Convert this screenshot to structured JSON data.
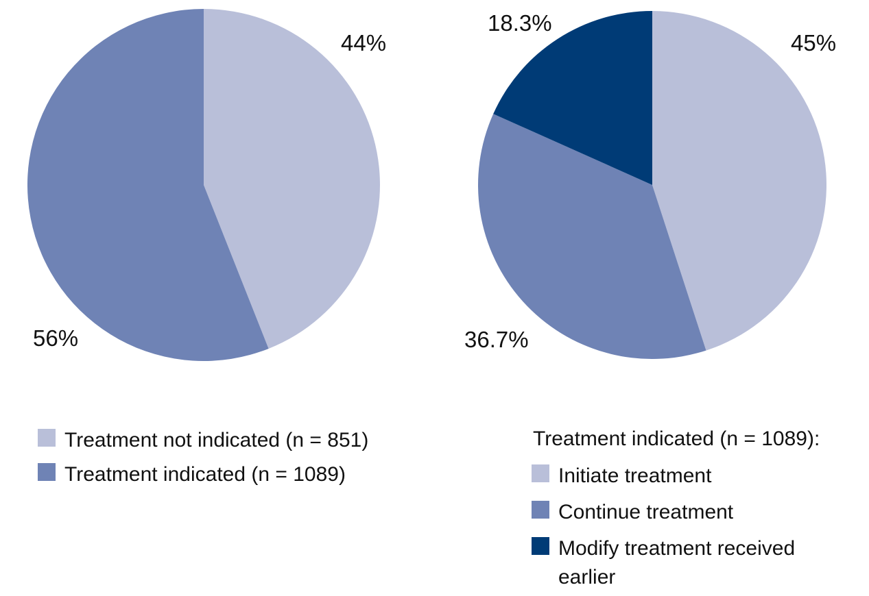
{
  "page": {
    "background": "#ffffff"
  },
  "chart_data": [
    {
      "type": "pie",
      "start_angle_deg": 0,
      "direction": "clockwise",
      "legend_position": "below-left",
      "slices": [
        {
          "label": "Treatment not indicated (n = 851)",
          "value": 44,
          "display": "44%",
          "color": "#b9bfd9"
        },
        {
          "label": "Treatment indicated (n = 1089)",
          "value": 56,
          "display": "56%",
          "color": "#6f83b5"
        }
      ]
    },
    {
      "type": "pie",
      "start_angle_deg": 0,
      "direction": "clockwise",
      "legend_position": "below-right",
      "legend_header": "Treatment indicated (n = 1089):",
      "slices": [
        {
          "label": "Initiate treatment",
          "value": 45,
          "display": "45%",
          "color": "#b9bfd9"
        },
        {
          "label": "Continue treatment",
          "value": 36.7,
          "display": "36.7%",
          "color": "#6f83b5"
        },
        {
          "label": "Modify treatment received earlier",
          "value": 18.3,
          "display": "18.3%",
          "color": "#003b76"
        }
      ]
    }
  ]
}
